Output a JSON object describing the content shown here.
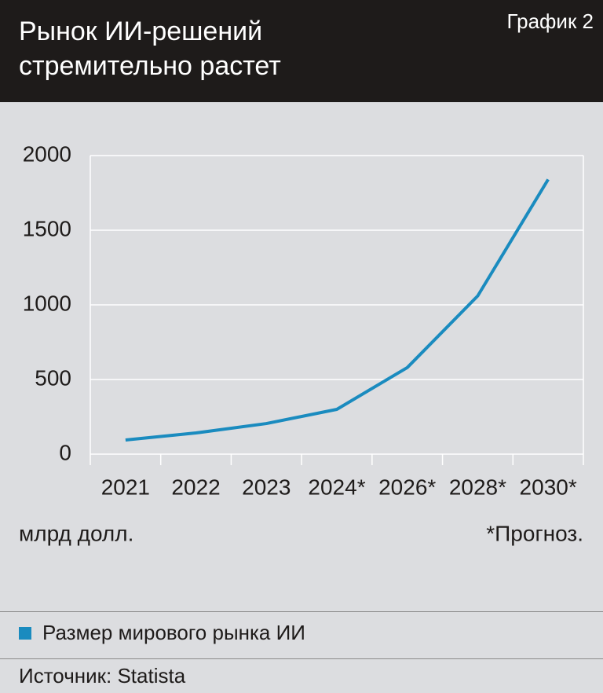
{
  "chart_data": {
    "type": "line",
    "title": "Рынок ИИ-решений стремительно растет",
    "label": "График 2",
    "y_label": "млрд долл.",
    "note": "*Прогноз.",
    "source": "Источник: Statista",
    "categories": [
      "2021",
      "2022",
      "2023",
      "2024*",
      "2026*",
      "2028*",
      "2030*"
    ],
    "series": [
      {
        "name": "Размер мирового рынка ИИ",
        "color": "#1a8bbf",
        "values": [
          95,
          142,
          205,
          300,
          580,
          1060,
          1840
        ]
      }
    ],
    "ylim": [
      0,
      2000
    ],
    "yticks": [
      0,
      500,
      1000,
      1500,
      2000
    ],
    "grid": true
  }
}
